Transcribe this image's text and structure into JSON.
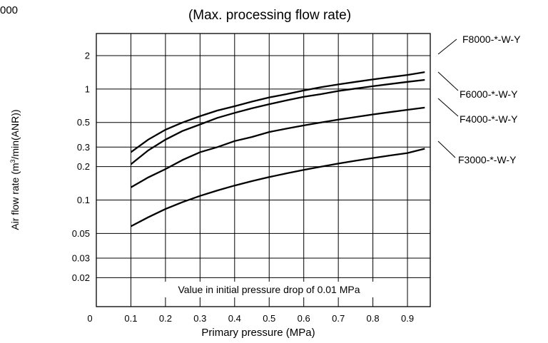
{
  "corner_text": "000",
  "chart_data": {
    "type": "line",
    "title": "(Max. processing flow rate)",
    "xlabel": "Primary pressure (MPa)",
    "ylabel_main": "Air flow rate (m",
    "ylabel_sup": "3",
    "ylabel_rest": "/min(ANR))",
    "annotation": "Value in initial pressure drop of 0.01 MPa",
    "x_scale": "linear",
    "y_scale": "log",
    "grid": true,
    "xlim": [
      0,
      0.95
    ],
    "x_ticks": [
      0,
      0.1,
      0.2,
      0.3,
      0.4,
      0.5,
      0.6,
      0.7,
      0.8,
      0.9
    ],
    "x_tick_labels": [
      "0",
      "0.1",
      "0.2",
      "0.3",
      "0.4",
      "0.5",
      "0.6",
      "0.7",
      "0.8",
      "0.9"
    ],
    "y_ticks": [
      0.02,
      0.03,
      0.05,
      0.1,
      0.2,
      0.3,
      0.5,
      1,
      2
    ],
    "y_tick_labels": [
      "0.02",
      "0.03",
      "0.05",
      "0.1",
      "0.2",
      "0.3",
      "0.5",
      "1",
      "2"
    ],
    "x": [
      0.1,
      0.15,
      0.2,
      0.25,
      0.3,
      0.35,
      0.4,
      0.45,
      0.5,
      0.55,
      0.6,
      0.65,
      0.7,
      0.75,
      0.8,
      0.85,
      0.9,
      0.95
    ],
    "series": [
      {
        "name": "F8000-*-W-Y",
        "values": [
          0.27,
          0.35,
          0.43,
          0.5,
          0.57,
          0.64,
          0.7,
          0.77,
          0.84,
          0.9,
          0.97,
          1.04,
          1.1,
          1.16,
          1.22,
          1.28,
          1.34,
          1.42
        ]
      },
      {
        "name": "F6000-*-W-Y",
        "values": [
          0.21,
          0.28,
          0.35,
          0.42,
          0.48,
          0.55,
          0.61,
          0.67,
          0.73,
          0.79,
          0.85,
          0.9,
          0.96,
          1.01,
          1.06,
          1.11,
          1.16,
          1.21
        ]
      },
      {
        "name": "F4000-*-W-Y",
        "values": [
          0.13,
          0.16,
          0.19,
          0.23,
          0.27,
          0.3,
          0.34,
          0.37,
          0.41,
          0.44,
          0.47,
          0.5,
          0.53,
          0.56,
          0.59,
          0.62,
          0.65,
          0.68
        ]
      },
      {
        "name": "F3000-*-W-Y",
        "values": [
          0.058,
          0.07,
          0.083,
          0.096,
          0.109,
          0.122,
          0.135,
          0.148,
          0.161,
          0.174,
          0.187,
          0.2,
          0.213,
          0.226,
          0.239,
          0.252,
          0.265,
          0.29
        ]
      }
    ]
  }
}
